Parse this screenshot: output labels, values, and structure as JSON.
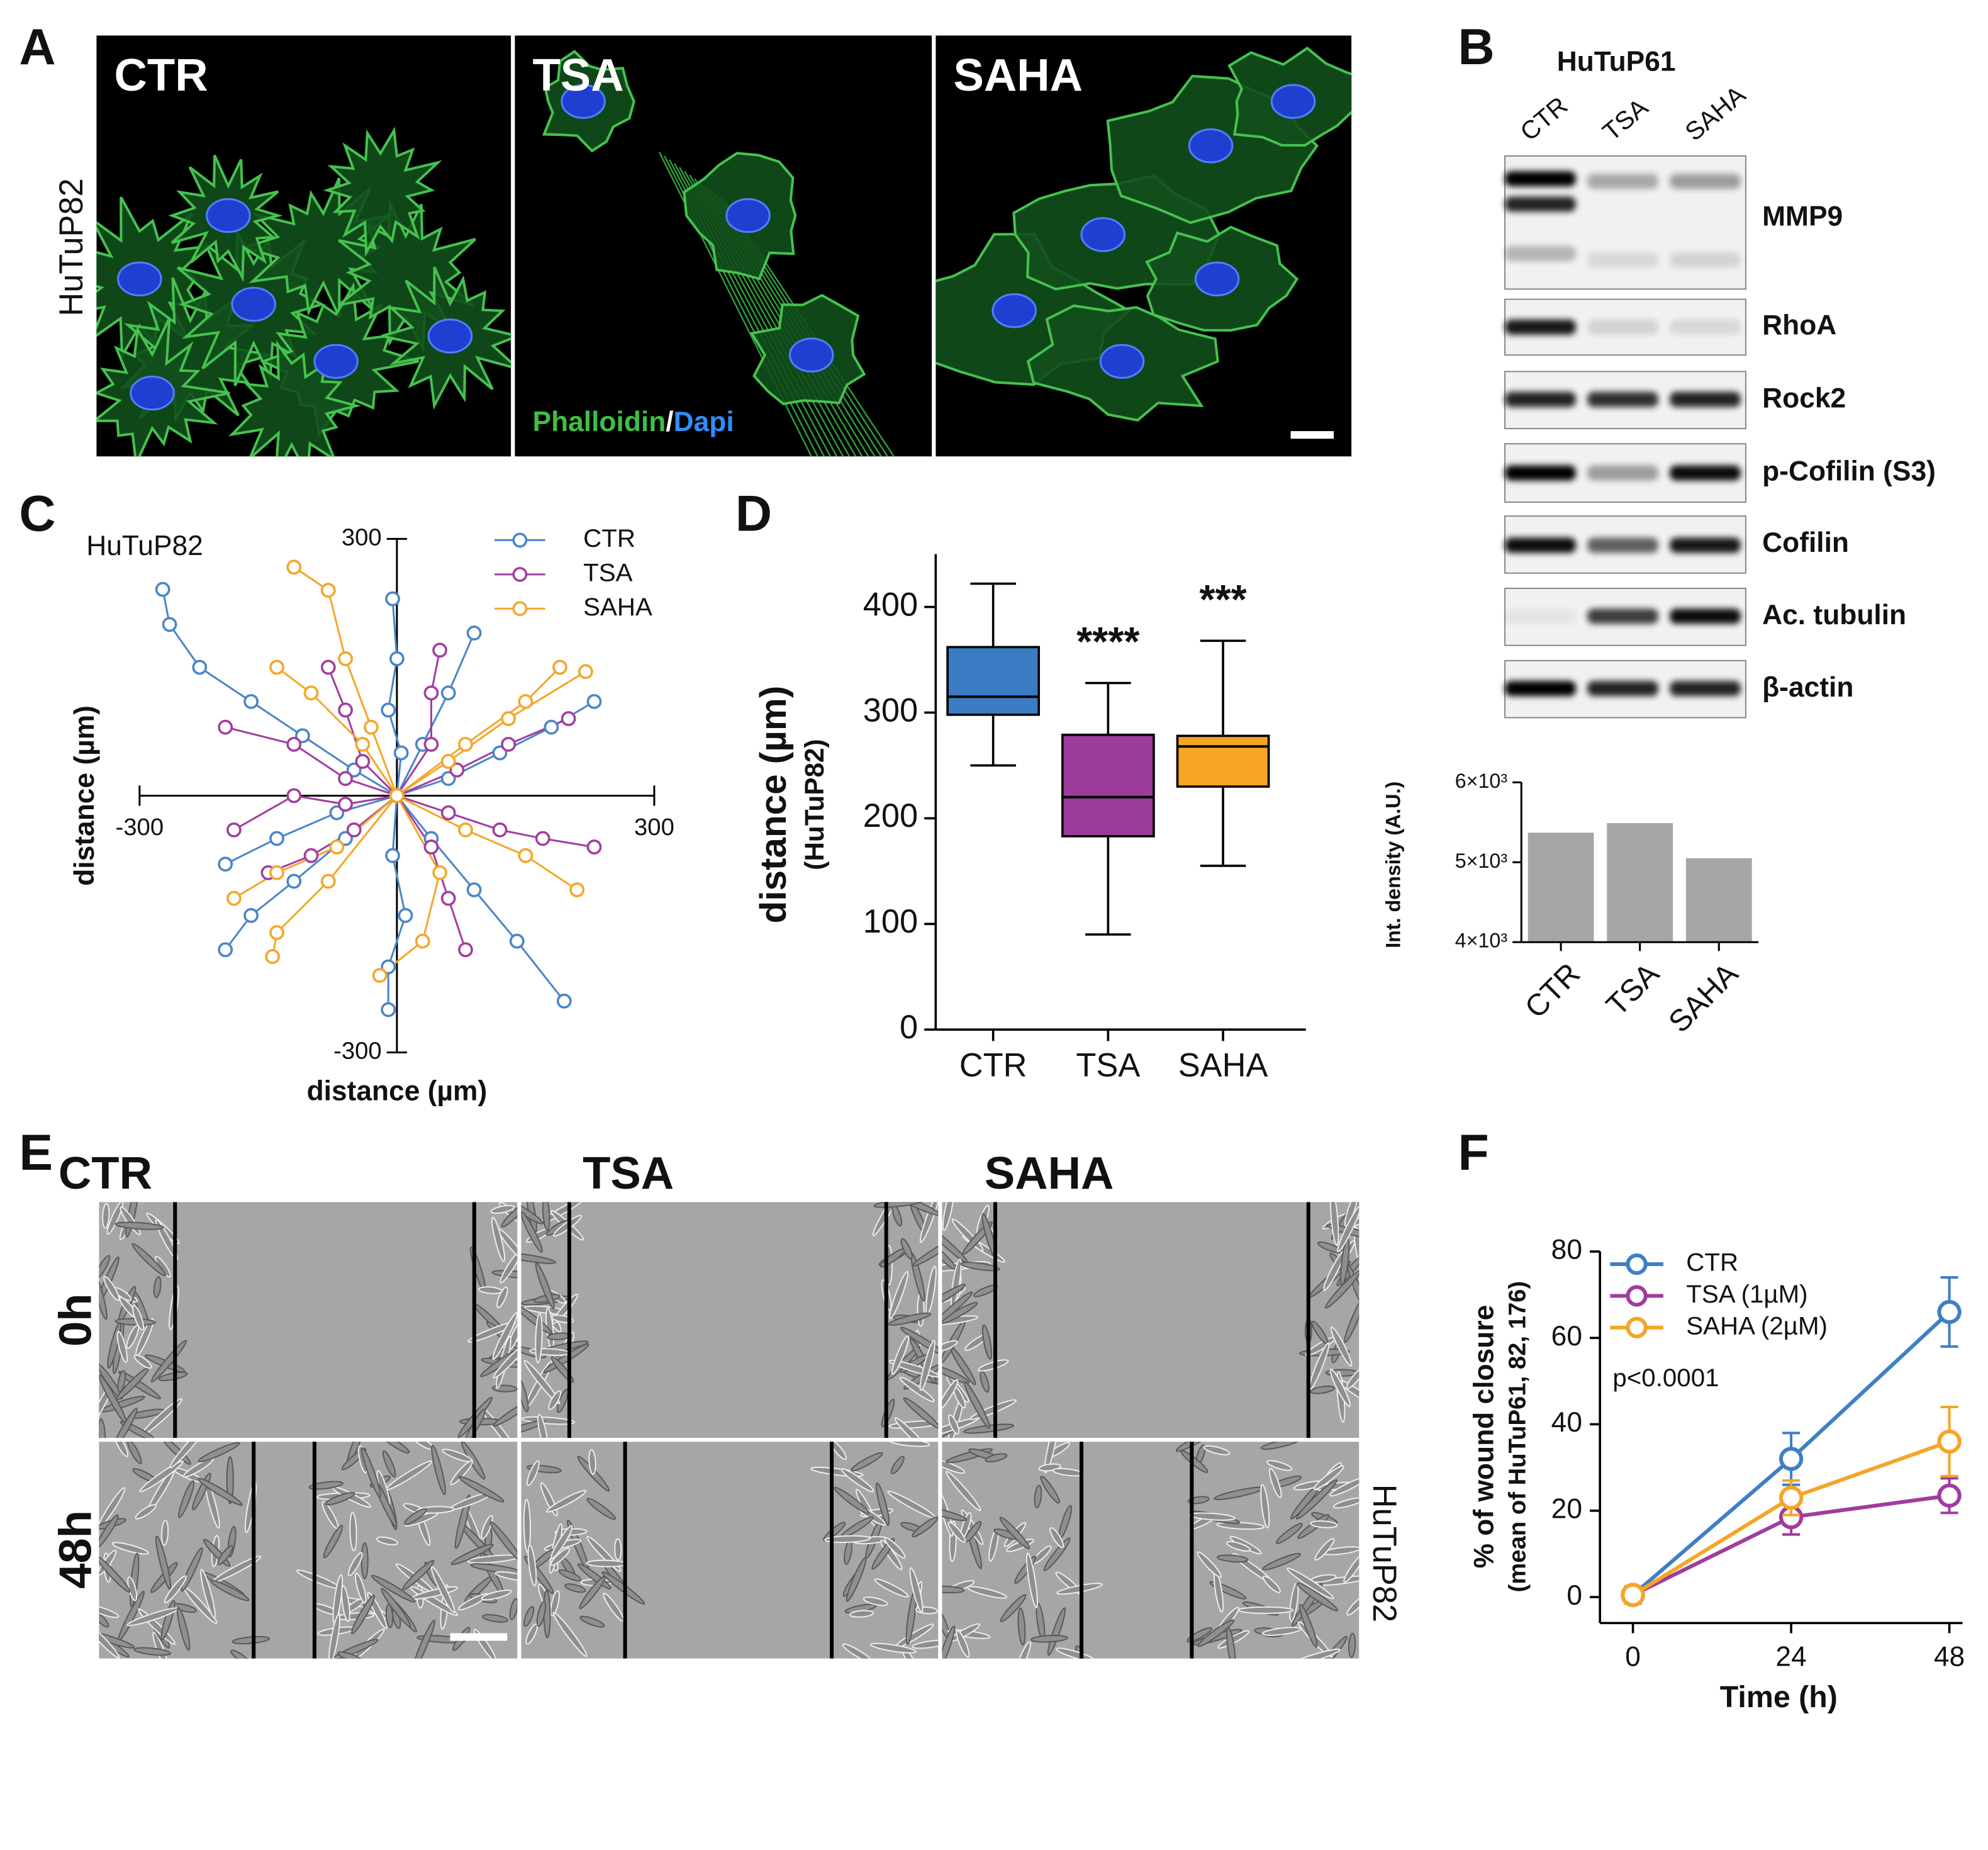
{
  "panel_labels": [
    "A",
    "B",
    "C",
    "D",
    "E",
    "F"
  ],
  "panel_a": {
    "row_label": "HuTuP82",
    "conditions": [
      "CTR",
      "TSA",
      "SAHA"
    ],
    "stain": [
      "Phalloidin",
      "/",
      "Dapi"
    ]
  },
  "panel_b": {
    "cell_line": "HuTuP61",
    "lanes": [
      "CTR",
      "TSA",
      "SAHA"
    ],
    "proteins": [
      "MMP9",
      "RhoA",
      "Rock2",
      "p-Cofilin (S3)",
      "Cofilin",
      "Ac. tubulin",
      "β-actin"
    ]
  },
  "panel_e": {
    "conditions": [
      "CTR",
      "TSA",
      "SAHA"
    ],
    "times": [
      "0h",
      "48h"
    ],
    "side_label": "HuTuP82"
  },
  "chart_data": [
    {
      "type": "scatter",
      "title": "HuTuP82",
      "x_label": "distance (µm)",
      "y_label": "distance (µm)",
      "xlim": [
        -300,
        300
      ],
      "ylim": [
        -300,
        300
      ],
      "xticks": [
        -300,
        300
      ],
      "yticks": [
        -300,
        300
      ],
      "legend": "upper right",
      "series": [
        {
          "name": "CTR",
          "color": "#4a86c8",
          "x": [
            0,
            -50,
            -110,
            -170,
            -230,
            -265,
            -273,
            null,
            0,
            5,
            -10,
            0,
            -5,
            null,
            0,
            60,
            120,
            180,
            230,
            null,
            0,
            40,
            90,
            140,
            195,
            null,
            0,
            -5,
            10,
            -10,
            -10,
            null,
            0,
            -60,
            -120,
            -170,
            -200,
            null,
            0,
            -70,
            -140,
            -200,
            null,
            0,
            30,
            60,
            90
          ],
          "y": [
            0,
            30,
            70,
            110,
            150,
            200,
            241,
            null,
            0,
            50,
            100,
            160,
            230,
            null,
            0,
            20,
            50,
            80,
            110,
            null,
            0,
            -50,
            -110,
            -170,
            -240,
            null,
            0,
            -70,
            -140,
            -200,
            -250,
            null,
            0,
            -50,
            -100,
            -140,
            -180,
            null,
            0,
            -20,
            -50,
            -80,
            null,
            0,
            60,
            120,
            190
          ]
        },
        {
          "name": "TSA",
          "color": "#a23e9f",
          "x": [
            0,
            60,
            120,
            170,
            230,
            null,
            0,
            -60,
            -120,
            -200,
            null,
            0,
            40,
            40,
            50,
            null,
            0,
            -50,
            -100,
            -150,
            null,
            0,
            40,
            60,
            80,
            null,
            0,
            -40,
            -60,
            -80,
            null,
            0,
            70,
            130,
            200,
            null,
            0,
            -60,
            -120,
            -190
          ],
          "y": [
            0,
            -20,
            -40,
            -50,
            -60,
            null,
            0,
            20,
            60,
            80,
            null,
            0,
            60,
            120,
            170,
            null,
            0,
            -40,
            -70,
            -90,
            null,
            0,
            -60,
            -120,
            -180,
            null,
            0,
            40,
            100,
            150,
            null,
            0,
            30,
            60,
            90,
            null,
            0,
            -10,
            0,
            -40
          ]
        },
        {
          "name": "SAHA",
          "color": "#f4a62a",
          "x": [
            0,
            -30,
            -60,
            -80,
            -120,
            null,
            0,
            60,
            130,
            220,
            null,
            0,
            -70,
            -140,
            -190,
            null,
            0,
            80,
            150,
            210,
            null,
            0,
            -80,
            -140,
            -145,
            null,
            0,
            50,
            30,
            -20,
            null,
            0,
            80,
            150,
            190,
            null,
            0,
            -40,
            -100,
            -140
          ],
          "y": [
            0,
            80,
            160,
            240,
            267,
            null,
            0,
            40,
            90,
            145,
            null,
            0,
            -60,
            -90,
            -120,
            null,
            0,
            -40,
            -70,
            -110,
            null,
            0,
            -100,
            -160,
            -188,
            null,
            0,
            -90,
            -170,
            -210,
            null,
            0,
            60,
            110,
            150,
            null,
            0,
            60,
            120,
            150
          ]
        }
      ]
    },
    {
      "type": "box",
      "y_label": "distance (µm)",
      "y_sublabel": "(HuTuP82)",
      "categories": [
        "CTR",
        "TSA",
        "SAHA"
      ],
      "colors": [
        "#3a7bc3",
        "#9c3b9a",
        "#f6a623"
      ],
      "min": [
        250,
        90,
        155
      ],
      "q1": [
        298,
        183,
        230
      ],
      "median": [
        315,
        220,
        268
      ],
      "q3": [
        362,
        279,
        278
      ],
      "max": [
        422,
        328,
        368
      ],
      "significance": [
        null,
        "****",
        "***"
      ],
      "ylim": [
        0,
        450
      ],
      "yticks": [
        0,
        100,
        200,
        300,
        400
      ]
    },
    {
      "type": "bar",
      "y_label": "Int. density (A.U.)",
      "categories": [
        "CTR",
        "TSA",
        "SAHA"
      ],
      "values": [
        5370,
        5490,
        5050
      ],
      "color": "#a6a6a6",
      "ylim": [
        4000,
        6000
      ],
      "yticks": [
        {
          "value": 4000,
          "label": "4×10³"
        },
        {
          "value": 5000,
          "label": "5×10³"
        },
        {
          "value": 6000,
          "label": "6×10³"
        }
      ]
    },
    {
      "type": "line",
      "x_label": "Time (h)",
      "y_label": "% of wound closure",
      "y_sublabel": "(mean of HuTuP61, 82, 176)",
      "annotation": "p<0.0001",
      "x": [
        0,
        24,
        48
      ],
      "xlim": [
        -5,
        50
      ],
      "xticks": [
        0,
        24,
        48
      ],
      "ylim": [
        -6,
        80
      ],
      "yticks": [
        0,
        20,
        40,
        60,
        80
      ],
      "legend": "upper left",
      "series": [
        {
          "name": "CTR",
          "color": "#3f7fc6",
          "values": [
            0.5,
            32,
            66
          ],
          "errors": [
            2,
            6,
            8
          ]
        },
        {
          "name": "TSA (1µM)",
          "color": "#a03c9e",
          "values": [
            0.5,
            18.5,
            23.5
          ],
          "errors": [
            2,
            4,
            4
          ]
        },
        {
          "name": "SAHA (2µM)",
          "color": "#f5a528",
          "values": [
            0.5,
            23,
            36
          ],
          "errors": [
            2,
            4,
            8
          ]
        }
      ]
    }
  ]
}
